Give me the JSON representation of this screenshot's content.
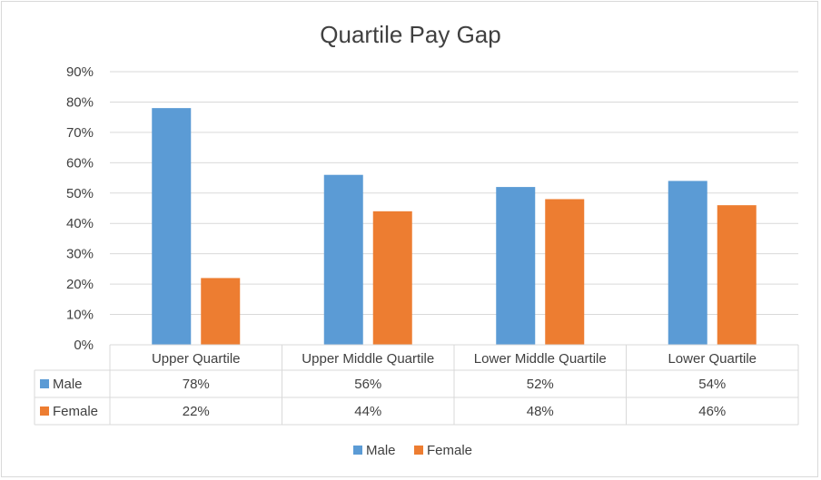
{
  "chart_data": {
    "type": "bar",
    "title": "Quartile Pay Gap",
    "categories": [
      "Upper Quartile",
      "Upper Middle Quartile",
      "Lower Middle Quartile",
      "Lower Quartile"
    ],
    "series": [
      {
        "name": "Male",
        "values": [
          78,
          56,
          52,
          54
        ],
        "labels": [
          "78%",
          "56%",
          "52%",
          "54%"
        ],
        "color": "#5b9bd5"
      },
      {
        "name": "Female",
        "values": [
          22,
          44,
          48,
          46
        ],
        "labels": [
          "22%",
          "44%",
          "48%",
          "46%"
        ],
        "color": "#ed7d31"
      }
    ],
    "ylim": [
      0,
      90
    ],
    "yticks": [
      0,
      10,
      20,
      30,
      40,
      50,
      60,
      70,
      80,
      90
    ],
    "ytick_labels": [
      "0%",
      "10%",
      "20%",
      "30%",
      "40%",
      "50%",
      "60%",
      "70%",
      "80%",
      "90%"
    ],
    "grid": true,
    "data_table": true,
    "legend": "bottom"
  },
  "colors": {
    "gridline": "#d9d9d9",
    "title": "#404040",
    "text": "#404040"
  }
}
